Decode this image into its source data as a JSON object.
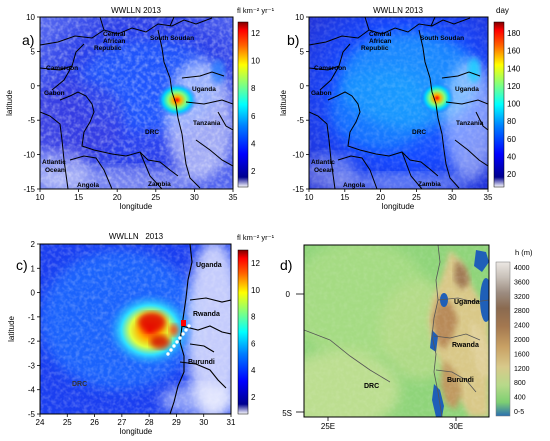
{
  "chart_data": [
    {
      "type": "heatmap",
      "panel_label": "a)",
      "title": "WWLLN 2013",
      "xlabel": "longitude",
      "ylabel": "latitude",
      "xlim": [
        10,
        35
      ],
      "ylim": [
        -15,
        10
      ],
      "x_ticks": [
        "10",
        "15",
        "20",
        "25",
        "30",
        "35"
      ],
      "y_ticks": [
        "10",
        "5",
        "0",
        "-5",
        "-10",
        "-15"
      ],
      "colorbar": {
        "unit_label": "fl km⁻² yr⁻¹",
        "ticks": [
          "12",
          "10",
          "8",
          "6",
          "4",
          "2"
        ],
        "range": [
          0,
          13
        ]
      },
      "annotations": [
        "Central African Republic",
        "South Soudan",
        "Cameroon",
        "Gabon",
        "Uganda",
        "DRC",
        "Tanzania",
        "Atlantic Ocean",
        "Angola",
        "Zambia"
      ],
      "hotspot": {
        "x": 28.3,
        "y": -2.0,
        "value": 12
      }
    },
    {
      "type": "heatmap",
      "panel_label": "b)",
      "title": "WWLLN 2013",
      "xlabel": "longitude",
      "ylabel": "latitude",
      "xlim": [
        10,
        35
      ],
      "ylim": [
        -15,
        10
      ],
      "x_ticks": [
        "10",
        "15",
        "20",
        "25",
        "30",
        "35"
      ],
      "y_ticks": [
        "10",
        "5",
        "0",
        "-5",
        "-10",
        "-15"
      ],
      "colorbar": {
        "unit_label": "day",
        "ticks": [
          "180",
          "160",
          "140",
          "120",
          "100",
          "80",
          "60",
          "40",
          "20"
        ],
        "range": [
          0,
          195
        ]
      },
      "annotations": [
        "Central African Republic",
        "South Soudan",
        "Cameroon",
        "Gabon",
        "Uganda",
        "DRC",
        "Tanzania",
        "Atlantic Ocean",
        "Angola",
        "Zambia"
      ],
      "hotspot": {
        "x": 28.3,
        "y": -2.0,
        "value": 190
      }
    },
    {
      "type": "heatmap",
      "panel_label": "c)",
      "title": "WWLLN   2013",
      "xlabel": "longitude",
      "ylabel": "latitude",
      "xlim": [
        24,
        31
      ],
      "ylim": [
        -5,
        2
      ],
      "x_ticks": [
        "24",
        "25",
        "26",
        "27",
        "28",
        "29",
        "30",
        "31"
      ],
      "y_ticks": [
        "2",
        "1",
        "0",
        "-1",
        "-2",
        "-3",
        "-4",
        "-5"
      ],
      "colorbar": {
        "unit_label": "fl km⁻² yr⁻¹",
        "ticks": [
          "12",
          "10",
          "8",
          "6",
          "4",
          "2"
        ],
        "range": [
          0,
          13
        ]
      },
      "annotations": [
        "Uganda",
        "Rwanda",
        "Burundi",
        "DRC"
      ],
      "hotspot": {
        "x": 28.0,
        "y": -1.8,
        "value": 12
      }
    },
    {
      "type": "heatmap",
      "panel_label": "d)",
      "title": "",
      "xlabel": "",
      "ylabel": "",
      "x_ticks": [
        "25E",
        "30E"
      ],
      "y_ticks": [
        "0",
        "5S"
      ],
      "colorbar": {
        "unit_label": "h (m)",
        "ticks": [
          "4000",
          "3600",
          "3200",
          "2800",
          "2400",
          "2000",
          "1600",
          "1200",
          "800",
          "400",
          "0-5"
        ]
      },
      "annotations": [
        "Uganda",
        "Rwanda",
        "DRC",
        "Burundi"
      ]
    }
  ],
  "colors": {
    "jet": [
      "#00008f",
      "#0000ff",
      "#0080ff",
      "#00ffff",
      "#80ff80",
      "#ffff00",
      "#ff8000",
      "#ff0000",
      "#800000"
    ],
    "low_value": "#ffffff",
    "boundary": "#000000",
    "terrain": [
      "#2a6fb0",
      "#7ecf72",
      "#b7d98a",
      "#d8c98a",
      "#c8a064",
      "#a47850",
      "#8a6a50",
      "#9c8c80",
      "#b4aaa0",
      "#c8c0b8",
      "#dcd8d0",
      "#ece8e4"
    ]
  }
}
